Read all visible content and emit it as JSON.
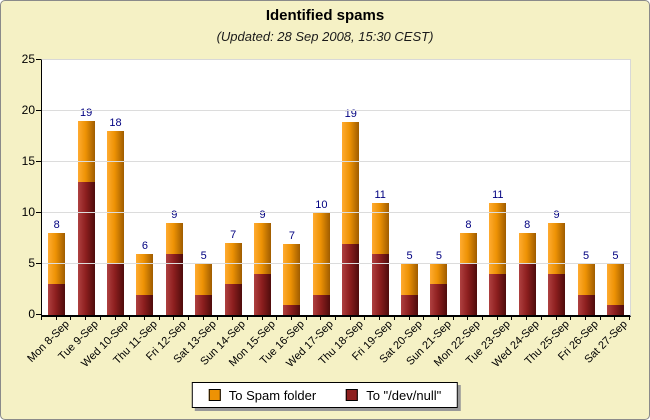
{
  "title": "Identified spams",
  "subtitle": "(Updated: 28 Sep 2008, 15:30 CEST)",
  "colors": {
    "background": "#F5F1C5",
    "plot_background": "#FFFFFF",
    "gridline": "#DCDCDC",
    "axis": "#000000",
    "value_label": "#000080",
    "spam_base": "#ED9204",
    "spam_light": "#FFAB30",
    "spam_dark": "#9F5C00",
    "devnull_base": "#8E1F1F",
    "devnull_light": "#AE4040",
    "devnull_dark": "#4E0C0C"
  },
  "y_axis": {
    "tick_labels": [
      "0",
      "5",
      "10",
      "15",
      "20",
      "25"
    ]
  },
  "legend": {
    "items": [
      {
        "label": "To Spam folder",
        "color": "#ED9204"
      },
      {
        "label": "To \"/dev/null\"",
        "color": "#8E1F1F"
      }
    ]
  },
  "chart_data": {
    "type": "bar",
    "stacked": true,
    "title": "Identified spams",
    "subtitle": "(Updated: 28 Sep 2008, 15:30 CEST)",
    "categories": [
      "Mon 8-Sep",
      "Tue 9-Sep",
      "Wed 10-Sep",
      "Thu 11-Sep",
      "Fri 12-Sep",
      "Sat 13-Sep",
      "Sun 14-Sep",
      "Mon 15-Sep",
      "Tue 16-Sep",
      "Wed 17-Sep",
      "Thu 18-Sep",
      "Fri 19-Sep",
      "Sat 20-Sep",
      "Sun 21-Sep",
      "Mon 22-Sep",
      "Tue 23-Sep",
      "Wed 24-Sep",
      "Thu 25-Sep",
      "Fri 26-Sep",
      "Sat 27-Sep"
    ],
    "series": [
      {
        "name": "To Spam folder",
        "color": "#ED9204",
        "values": [
          5,
          6,
          13,
          4,
          3,
          3,
          4,
          5,
          6,
          8,
          12,
          5,
          3,
          2,
          3,
          7,
          3,
          5,
          3,
          4
        ]
      },
      {
        "name": "To \"/dev/null\"",
        "color": "#8E1F1F",
        "values": [
          3,
          13,
          5,
          2,
          6,
          2,
          3,
          4,
          1,
          2,
          7,
          6,
          2,
          3,
          5,
          4,
          5,
          4,
          2,
          1
        ]
      }
    ],
    "totals": [
      8,
      19,
      18,
      6,
      9,
      5,
      7,
      9,
      7,
      10,
      19,
      11,
      5,
      5,
      8,
      11,
      8,
      9,
      5,
      5
    ],
    "xlabel": "",
    "ylabel": "",
    "ylim": [
      0,
      25
    ],
    "y_ticks": [
      0,
      5,
      10,
      15,
      20,
      25
    ],
    "grid": true,
    "legend_position": "bottom-center",
    "value_labels": "totals-above-bars"
  }
}
